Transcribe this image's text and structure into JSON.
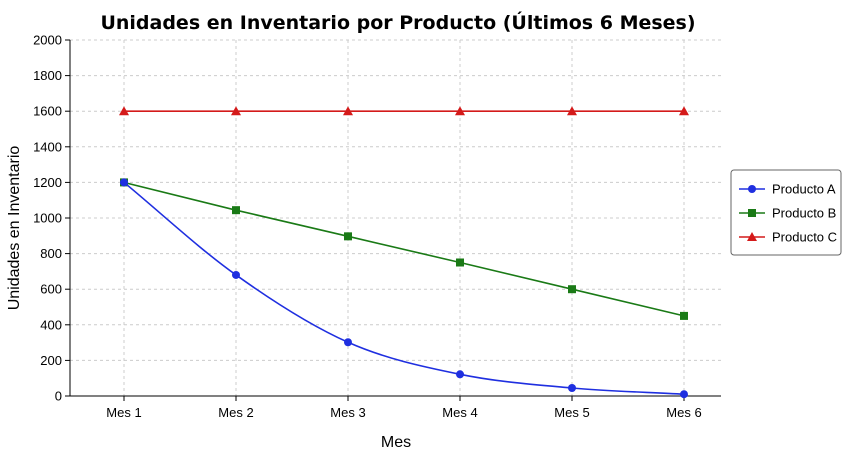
{
  "chart_data": {
    "type": "line",
    "title": "Unidades en Inventario por Producto (Últimos 6 Meses)",
    "xlabel": "Mes",
    "ylabel": "Unidades en Inventario",
    "categories": [
      "Mes 1",
      "Mes 2",
      "Mes 3",
      "Mes 4",
      "Mes 5",
      "Mes 6"
    ],
    "ylim": [
      0,
      2000
    ],
    "yticks": [
      0,
      200,
      400,
      600,
      800,
      1000,
      1200,
      1400,
      1600,
      1800,
      2000
    ],
    "grid": true,
    "legend_position": "right",
    "series": [
      {
        "name": "Producto A",
        "values": [
          1200,
          680,
          302,
          122,
          45,
          10
        ],
        "color": "#1f2fe0",
        "marker": "circle",
        "smooth": true
      },
      {
        "name": "Producto B",
        "values": [
          1200,
          1044,
          897,
          750,
          600,
          450
        ],
        "color": "#1a7a16",
        "marker": "square",
        "smooth": false
      },
      {
        "name": "Producto C",
        "values": [
          1600,
          1600,
          1600,
          1600,
          1600,
          1600
        ],
        "color": "#d41a1a",
        "marker": "triangle",
        "smooth": false
      }
    ]
  }
}
